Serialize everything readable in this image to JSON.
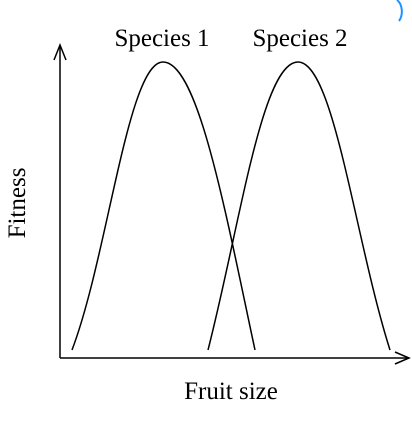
{
  "diagram": {
    "x_axis_label": "Fruit size",
    "y_axis_label": "Fitness",
    "curves": [
      {
        "label": "Species 1"
      },
      {
        "label": "Species 2"
      }
    ],
    "line_color": "#000000",
    "corner_accent_color": "#1e90ff"
  }
}
